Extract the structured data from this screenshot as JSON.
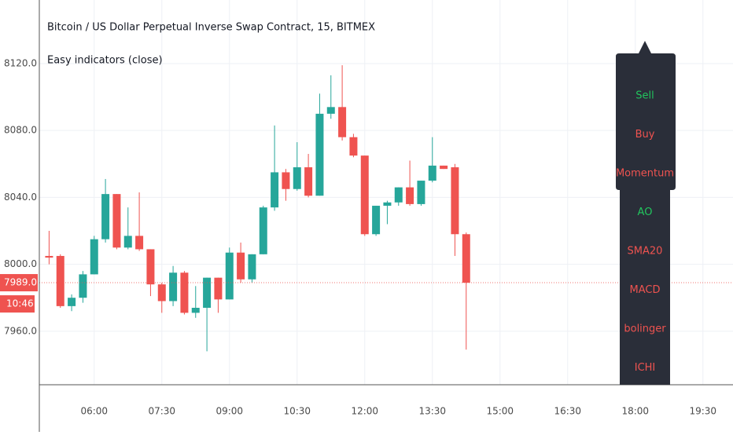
{
  "chart_data": {
    "type": "candlestick",
    "title": "Bitcoin / US Dollar Perpetual Inverse Swap Contract, 15, BITMEX",
    "subtitle": "Easy indicators (close)",
    "x": [
      "05:00",
      "05:15",
      "05:30",
      "05:45",
      "06:00",
      "06:15",
      "06:30",
      "06:45",
      "07:00",
      "07:15",
      "07:30",
      "07:45",
      "08:00",
      "08:15",
      "08:30",
      "08:45",
      "09:00",
      "09:15",
      "09:30",
      "09:45",
      "10:00",
      "10:15",
      "10:30",
      "10:45",
      "11:00",
      "11:15",
      "11:30",
      "11:45",
      "12:00",
      "12:15",
      "12:30",
      "12:45",
      "13:00",
      "13:15",
      "13:30",
      "13:45",
      "14:00",
      "14:15"
    ],
    "open": [
      8005,
      8005,
      7975,
      7980,
      7994,
      8015,
      8042,
      8010,
      8017,
      8009,
      7988,
      7978,
      7995,
      7971,
      7974,
      7992,
      7979,
      8007,
      7991,
      8006,
      8034,
      8055,
      8045,
      8058,
      8041,
      8090,
      8094,
      8076,
      8065,
      8018,
      8035,
      8037,
      8046,
      8036,
      8050,
      8059,
      8058,
      8018
    ],
    "high": [
      8020,
      8006,
      7982,
      7996,
      8017,
      8051,
      8042,
      8034,
      8043,
      8009,
      7989,
      7999,
      7996,
      7987,
      7992,
      7992,
      8010,
      8013,
      8006,
      8035,
      8083,
      8057,
      8073,
      8066,
      8102,
      8113,
      8119,
      8078,
      8065,
      8035,
      8038,
      8046,
      8062,
      8050,
      8076,
      8059,
      8060,
      8019
    ],
    "low": [
      8000,
      7974,
      7972,
      7977,
      7994,
      8013,
      8009,
      8009,
      8008,
      7981,
      7971,
      7975,
      7970,
      7968,
      7948,
      7971,
      7979,
      7989,
      7989,
      8006,
      8032,
      8038,
      8044,
      8040,
      8041,
      8087,
      8074,
      8064,
      8017,
      8017,
      8024,
      8035,
      8035,
      8035,
      8049,
      8057,
      8005,
      7949
    ],
    "close": [
      8004,
      7975,
      7980,
      7994,
      8015,
      8042,
      8010,
      8017,
      8009,
      7988,
      7978,
      7995,
      7971,
      7974,
      7992,
      7979,
      8007,
      7991,
      8006,
      8034,
      8055,
      8045,
      8058,
      8041,
      8090,
      8094,
      8076,
      8065,
      8018,
      8035,
      8037,
      8046,
      8036,
      8050,
      8059,
      8057,
      8018,
      7989
    ],
    "up_color": "#26a69a",
    "down_color": "#ef5350",
    "xlim": [
      "04:47",
      "20:10"
    ],
    "xticks": [
      "06:00",
      "07:30",
      "09:00",
      "10:30",
      "12:00",
      "13:30",
      "15:00",
      "16:30",
      "18:00",
      "19:30"
    ],
    "ylim": [
      7928,
      8158
    ],
    "yticks": [
      {
        "value": 7960,
        "label": "7960.0"
      },
      {
        "value": 8000,
        "label": "8000.0"
      },
      {
        "value": 8040,
        "label": "8040.0"
      },
      {
        "value": 8080,
        "label": "8080.0"
      },
      {
        "value": 8120,
        "label": "8120.0"
      }
    ],
    "grid": true,
    "last_price": {
      "value": 7989,
      "label": "7989.0"
    },
    "countdown": "10:46"
  },
  "indicator_panel": [
    {
      "label": "Sell",
      "color": "#22c55e"
    },
    {
      "label": "Buy",
      "color": "#ef5350"
    },
    {
      "label": "Momentum",
      "color": "#ef5350"
    },
    {
      "label": "AO",
      "color": "#22c55e"
    },
    {
      "label": "SMA20",
      "color": "#ef5350"
    },
    {
      "label": "MACD",
      "color": "#ef5350"
    },
    {
      "label": "bolinger",
      "color": "#ef5350"
    },
    {
      "label": "ICHI",
      "color": "#ef5350"
    }
  ]
}
